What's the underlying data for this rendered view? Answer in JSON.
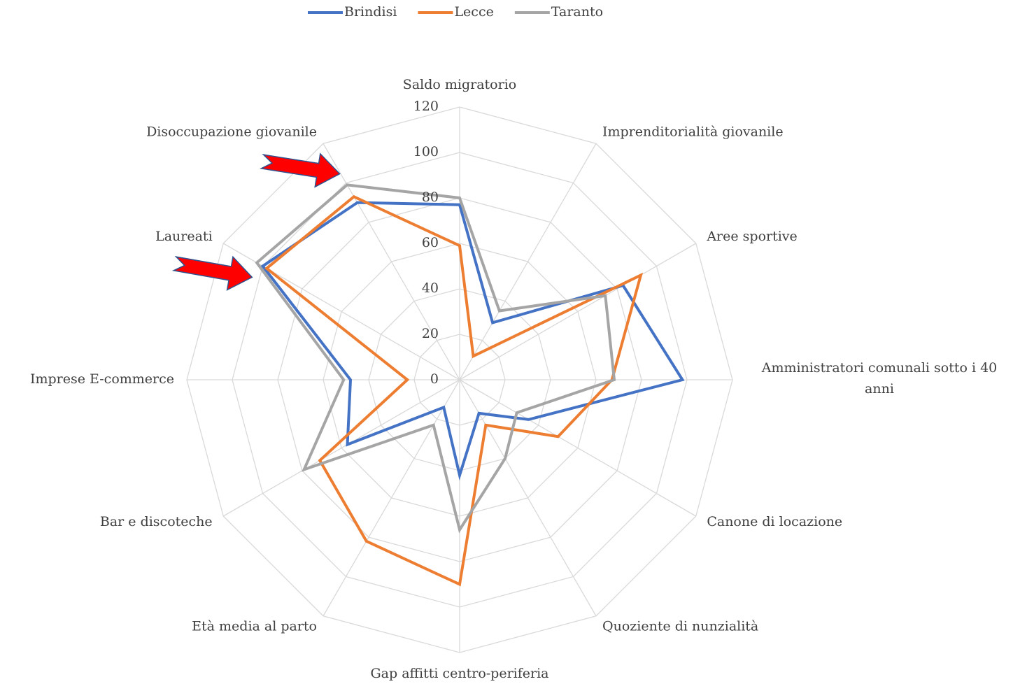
{
  "chart_data": {
    "type": "radar",
    "categories": [
      "Saldo migratorio",
      "Imprenditorialità giovanile",
      "Aree sportive",
      "Amministratori comunali sotto i 40 anni",
      "Canone di locazione",
      "Quoziente di nunzialità",
      "Gap affitti centro-periferia",
      "Età media al parto",
      "Bar e discoteche",
      "Imprese E-commerce",
      "Laureati",
      "Disoccupazione giovanile"
    ],
    "series": [
      {
        "name": "Brindisi",
        "color": "#4472c4",
        "values": [
          77,
          29,
          83,
          98,
          35,
          17,
          42,
          14,
          57,
          48,
          100,
          90
        ]
      },
      {
        "name": "Lecce",
        "color": "#ed7d31",
        "values": [
          59,
          12,
          92,
          67,
          50,
          23,
          90,
          82,
          71,
          23,
          98,
          93
        ]
      },
      {
        "name": "Taranto",
        "color": "#a5a5a5",
        "values": [
          80,
          35,
          74,
          68,
          29,
          40,
          66,
          23,
          79,
          51,
          103,
          99
        ]
      }
    ],
    "ylim": [
      0,
      120
    ],
    "yticks": [
      0,
      20,
      40,
      60,
      80,
      100,
      120
    ],
    "grid": true,
    "legend": "top"
  }
}
